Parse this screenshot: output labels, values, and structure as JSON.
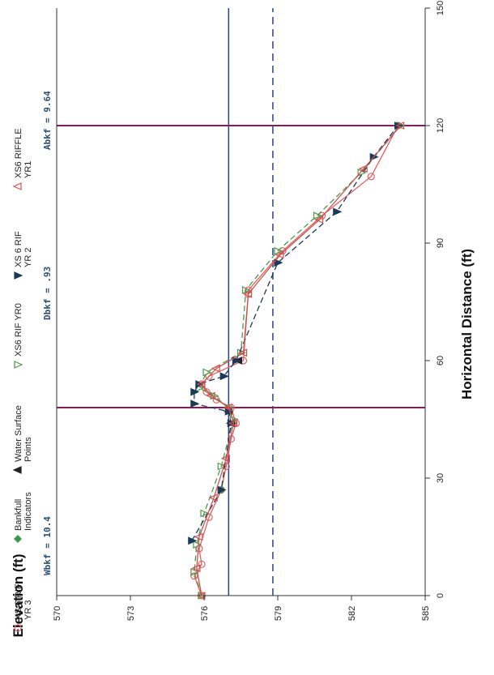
{
  "chart_data": {
    "type": "line",
    "xlabel": "Horizontal Distance (ft)",
    "ylabel": "Elevation (ft)",
    "xlim": [
      0,
      150
    ],
    "ylim": [
      570,
      585
    ],
    "xticks": [
      "0",
      "30",
      "60",
      "90",
      "120",
      "150"
    ],
    "yticks": [
      "570",
      "573",
      "576",
      "579",
      "582",
      "585"
    ],
    "orientation": "rotated 90 degrees clockwise on the page",
    "grid": false,
    "legend_position": "top",
    "series": [
      {
        "name": "XS 6 RIF YR 3",
        "color": "#e06060",
        "marker": "circle-open",
        "style": "solid",
        "x": [
          0,
          5,
          8,
          12,
          20,
          27,
          33,
          40,
          44,
          48,
          50,
          52,
          54,
          56,
          60,
          77,
          78,
          88,
          97,
          107,
          120
        ],
        "y": [
          575.9,
          575.6,
          575.9,
          575.8,
          576.2,
          576.7,
          576.9,
          577.1,
          577.3,
          577.1,
          576.5,
          576.1,
          575.9,
          576.2,
          577.6,
          577.8,
          577.8,
          579.2,
          580.8,
          582.8,
          583.9
        ]
      },
      {
        "name": "Bankfull Indicators",
        "color": "#3a9a4a",
        "marker": "diamond",
        "style": "none",
        "x": [
          27
        ],
        "y": [
          576.7
        ]
      },
      {
        "name": "Water Surface Points",
        "color": "#222222",
        "marker": "triangle-down",
        "style": "none",
        "x": [
          44,
          47,
          60
        ],
        "y": [
          577.1,
          577.0,
          577.4
        ]
      },
      {
        "name": "XS6 RIF YR0",
        "color": "#4a9a4a",
        "marker": "triangle-open",
        "style": "dashed",
        "x": [
          0,
          6,
          13,
          21,
          33,
          45,
          48,
          51,
          53,
          57,
          62,
          78,
          88,
          97,
          108,
          120
        ],
        "y": [
          575.9,
          575.6,
          575.7,
          576.0,
          576.7,
          577.2,
          577.0,
          576.4,
          575.8,
          576.1,
          577.5,
          577.7,
          579.0,
          580.6,
          582.4,
          584.0
        ]
      },
      {
        "name": "XS 6 RIF YR 2",
        "color": "#1a3a5a",
        "marker": "triangle-filled",
        "style": "dashed",
        "x": [
          14,
          27,
          44,
          47,
          49,
          52,
          54,
          56,
          60,
          85,
          98,
          112,
          120
        ],
        "y": [
          575.5,
          576.7,
          577.1,
          577.0,
          575.6,
          575.6,
          575.8,
          576.8,
          577.3,
          579.0,
          581.4,
          582.9,
          583.9
        ]
      },
      {
        "name": "XS6 RIFFLE YR1",
        "color": "#d05050",
        "marker": "triangle-down-open",
        "style": "solid",
        "x": [
          0,
          7,
          15,
          25,
          35,
          44,
          48,
          51,
          54,
          58,
          62,
          77,
          87,
          96,
          109,
          120
        ],
        "y": [
          575.9,
          575.7,
          575.8,
          576.4,
          576.9,
          577.2,
          577.0,
          576.3,
          575.9,
          576.5,
          577.6,
          577.8,
          579.1,
          580.7,
          582.5,
          584.0
        ]
      }
    ],
    "reference_lines": [
      {
        "orientation": "horizontal",
        "value": 578.8,
        "style": "dashed",
        "color": "#2a3f8f"
      },
      {
        "orientation": "horizontal",
        "value": 577.0,
        "style": "solid",
        "color": "#2a3f8f"
      },
      {
        "orientation": "vertical",
        "value": 48,
        "style": "solid",
        "color": "#8a1a5a"
      },
      {
        "orientation": "vertical",
        "value": 120,
        "style": "solid",
        "color": "#8a1a5a"
      }
    ],
    "annotations": [
      "Wbkf = 10.4",
      "Dbkf = .93",
      "Abkf = 9.64"
    ]
  }
}
